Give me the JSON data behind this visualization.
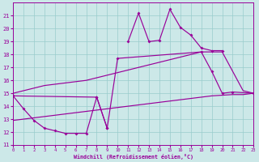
{
  "xlabel": "Windchill (Refroidissement éolien,°C)",
  "bg_color": "#cce8e8",
  "line_color": "#990099",
  "grid_color": "#99cccc",
  "xlim": [
    0,
    23
  ],
  "ylim": [
    11,
    22
  ],
  "xticks": [
    0,
    1,
    2,
    3,
    4,
    5,
    6,
    7,
    8,
    9,
    10,
    11,
    12,
    13,
    14,
    15,
    16,
    17,
    18,
    19,
    20,
    21,
    22,
    23
  ],
  "yticks": [
    11,
    12,
    13,
    14,
    15,
    16,
    17,
    18,
    19,
    20,
    21
  ],
  "curve_bottom_x": [
    0,
    1,
    2,
    3,
    4,
    5,
    6,
    7,
    8,
    9,
    10,
    11,
    12,
    13,
    14,
    15,
    16,
    17,
    18,
    19,
    20,
    21,
    22,
    23
  ],
  "curve_bottom_y": [
    12.9,
    13.0,
    13.1,
    13.2,
    13.3,
    13.4,
    13.5,
    13.6,
    13.7,
    13.8,
    13.9,
    14.0,
    14.1,
    14.2,
    14.3,
    14.4,
    14.5,
    14.6,
    14.7,
    14.8,
    14.85,
    14.9,
    14.9,
    15.0
  ],
  "curve_top_x": [
    0,
    1,
    2,
    3,
    4,
    5,
    6,
    7,
    8,
    9,
    10,
    11,
    12,
    13,
    14,
    15,
    16,
    17,
    18,
    19,
    20,
    21,
    22,
    23
  ],
  "curve_top_y": [
    15.0,
    15.2,
    15.4,
    15.6,
    15.7,
    15.8,
    15.9,
    16.0,
    16.2,
    16.4,
    16.6,
    16.8,
    17.0,
    17.2,
    17.4,
    17.6,
    17.8,
    18.0,
    18.2,
    18.2,
    18.2,
    16.7,
    15.2,
    15.0
  ],
  "curve_spiky_x": [
    11,
    12,
    13,
    14,
    15,
    16,
    17,
    18,
    19,
    20
  ],
  "curve_spiky_y": [
    19.0,
    21.2,
    19.0,
    19.1,
    21.5,
    20.1,
    19.5,
    18.5,
    18.3,
    18.3
  ],
  "curve_morning_x": [
    0,
    1,
    2,
    3,
    4,
    5,
    6,
    7,
    8,
    9
  ],
  "curve_morning_y": [
    14.8,
    13.8,
    12.9,
    12.3,
    12.1,
    11.9,
    11.9,
    11.9,
    14.7,
    12.3
  ],
  "curve_day_x": [
    0,
    8,
    9,
    10,
    18,
    19,
    20,
    21,
    23
  ],
  "curve_day_y": [
    14.8,
    14.7,
    12.3,
    17.7,
    18.2,
    16.7,
    15.0,
    15.1,
    15.0
  ]
}
